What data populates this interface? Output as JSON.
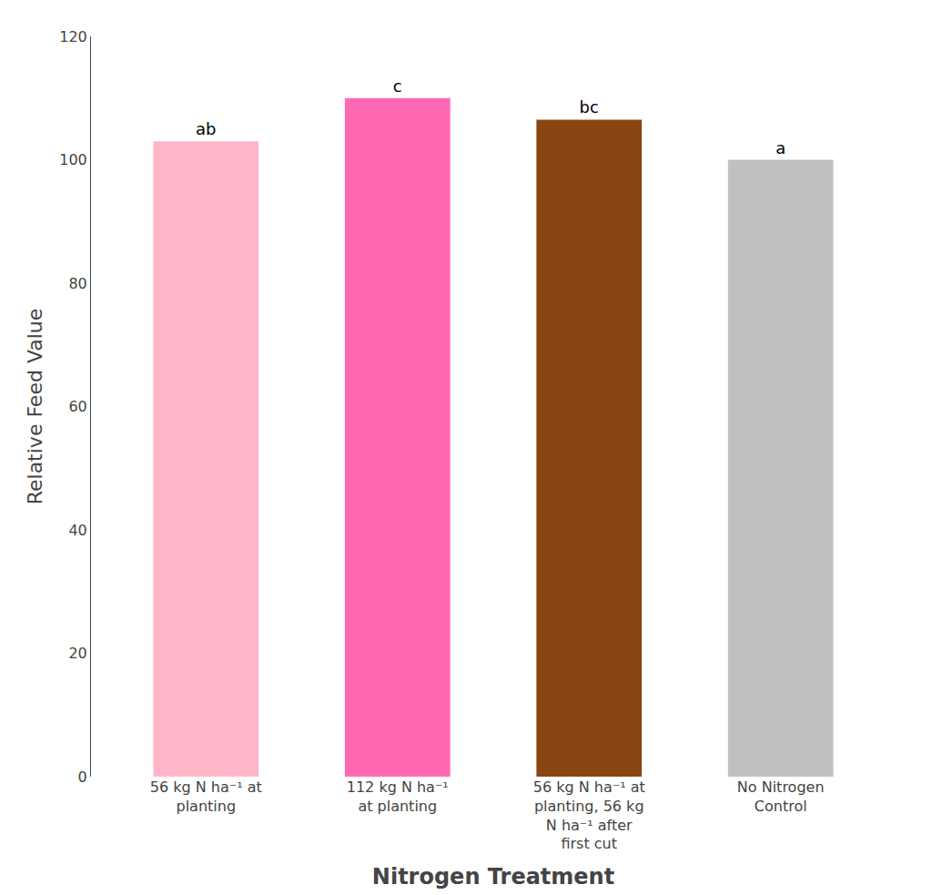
{
  "chart_data": {
    "type": "bar",
    "xlabel": "Nitrogen Treatment",
    "ylabel": "Relative Feed Value",
    "categories": [
      "56 kg N ha⁻¹ at\nplanting",
      "112 kg N ha⁻¹\nat planting",
      "56 kg N ha⁻¹ at\nplanting, 56 kg\nN ha⁻¹ after\nfirst cut",
      "No Nitrogen\nControl"
    ],
    "values": [
      103,
      110,
      106.5,
      100
    ],
    "colors": [
      "#FFB6C8",
      "#FF69B4",
      "#8B4513",
      "#C0C0C0"
    ],
    "annotations": [
      "ab",
      "c",
      "bc",
      "a"
    ],
    "ylim": [
      0,
      120
    ],
    "yticks": [
      0,
      20,
      40,
      60,
      80,
      100,
      120
    ],
    "grid": false
  }
}
